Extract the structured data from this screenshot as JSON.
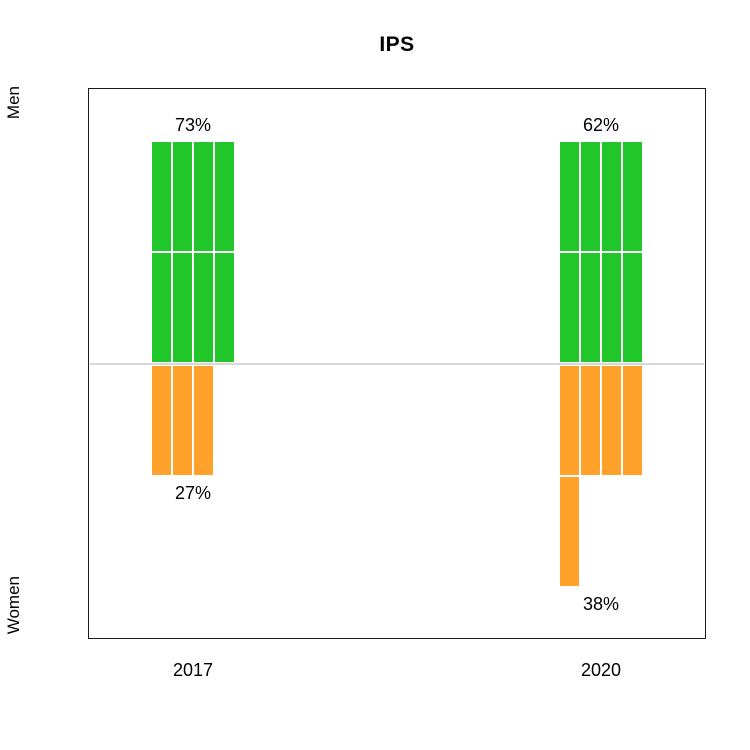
{
  "title": "IPS",
  "side_labels": {
    "top": "Men",
    "bottom": "Women"
  },
  "colors": {
    "men": "#21C62B",
    "women": "#FFA22B",
    "baseline": "#D8D8D8",
    "box_border": "#1A1A1A",
    "background": "#FFFFFF"
  },
  "chart_data": {
    "type": "bar",
    "subtype": "diverging-waffle",
    "title": "IPS",
    "categories": [
      "2017",
      "2020"
    ],
    "columns_per_bar": 4,
    "legend": "none",
    "axis_label_top": "Men",
    "axis_label_bottom": "Women",
    "baseline_value": 0,
    "series": [
      {
        "name": "Men",
        "direction": "up",
        "color": "#21C62B",
        "values": [
          73,
          62
        ],
        "labels": [
          "73%",
          "62%"
        ],
        "cells": [
          8,
          8
        ]
      },
      {
        "name": "Women",
        "direction": "down",
        "color": "#FFA22B",
        "values": [
          27,
          38
        ],
        "labels": [
          "27%",
          "38%"
        ],
        "cells": [
          3,
          5
        ]
      }
    ]
  }
}
